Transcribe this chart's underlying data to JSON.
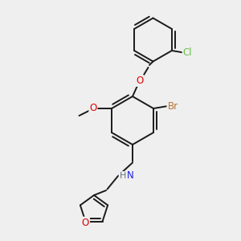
{
  "bg_color": "#efefef",
  "bond_color": "#1a1a1a",
  "bond_width": 1.4,
  "atom_colors": {
    "Br": "#b87333",
    "Cl": "#6abf4b",
    "O": "#e00000",
    "N": "#2020e0",
    "H": "#607080",
    "C": "#1a1a1a"
  },
  "font_size": 8.5,
  "figsize": [
    3.0,
    3.0
  ],
  "dpi": 100
}
